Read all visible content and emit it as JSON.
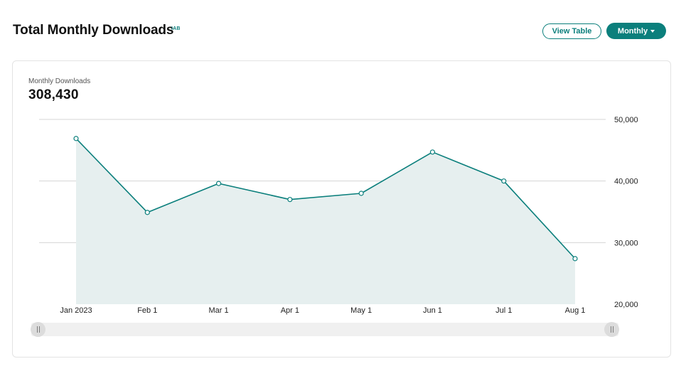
{
  "header": {
    "title": "Total Monthly Downloads",
    "badge": "IAB",
    "view_table_label": "View Table",
    "period_label": "Monthly"
  },
  "metric": {
    "label": "Monthly Downloads",
    "value": "308,430"
  },
  "colors": {
    "accent": "#0b7f7c",
    "area_fill": "#e6efef",
    "grid": "#d4d4d4"
  },
  "chart_data": {
    "type": "area",
    "x": [
      "Jan 2023",
      "Feb 1",
      "Mar 1",
      "Apr 1",
      "May 1",
      "Jun 1",
      "Jul 1",
      "Aug 1"
    ],
    "series": [
      {
        "values": [
          46900,
          34900,
          39600,
          37000,
          38000,
          44700,
          40000,
          27400
        ]
      }
    ],
    "ylim": [
      20000,
      50000
    ],
    "yticks": [
      20000,
      30000,
      40000,
      50000
    ],
    "ytick_labels": [
      "20,000",
      "30,000",
      "40,000",
      "50,000"
    ],
    "y_axis_side": "right",
    "grid": true,
    "markers": true,
    "title": "",
    "xlabel": "",
    "ylabel": ""
  }
}
